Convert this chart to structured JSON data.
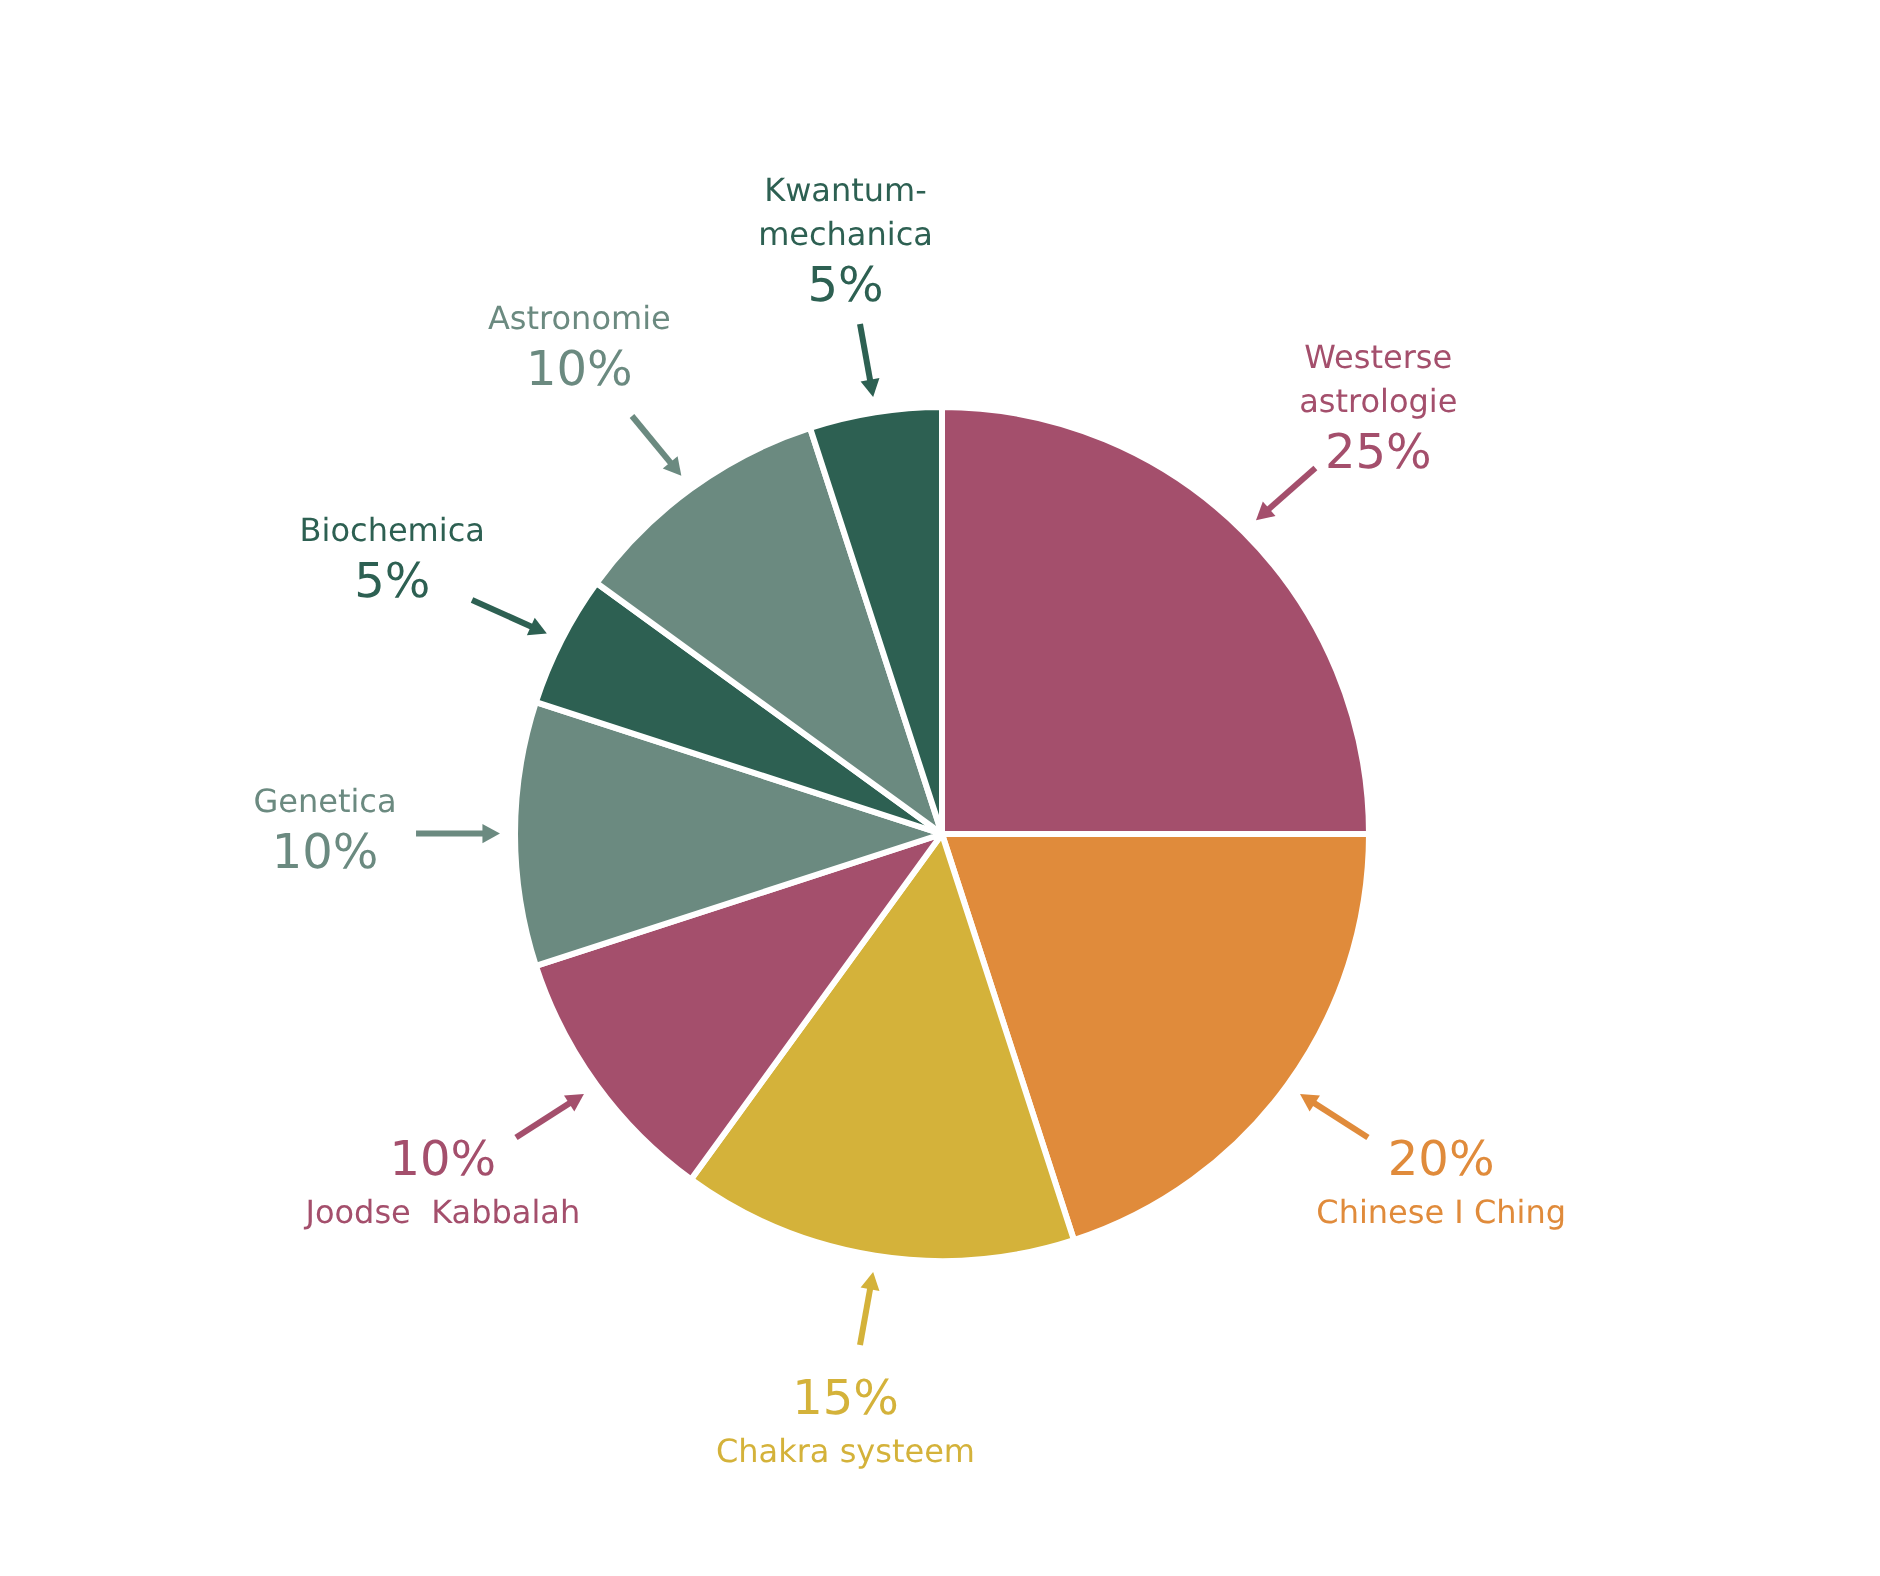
{
  "chart_data": {
    "type": "pie",
    "categories": [
      "Westerse\nastrologie",
      "Chinese I Ching",
      "Chakra systeem",
      "Joodse  Kabbalah",
      "Genetica",
      "Biochemica",
      "Astronomie",
      "Kwantum-\nmechanica"
    ],
    "values": [
      25,
      20,
      15,
      10,
      10,
      5,
      10,
      5
    ],
    "value_labels": [
      "25%",
      "20%",
      "15%",
      "10%",
      "10%",
      "5%",
      "10%",
      "5%"
    ],
    "colors": [
      "#a44f6c",
      "#e08b3b",
      "#d4b23a",
      "#a44f6c",
      "#6b8a80",
      "#2d6052",
      "#6b8a80",
      "#2d6052"
    ],
    "legend": false
  }
}
